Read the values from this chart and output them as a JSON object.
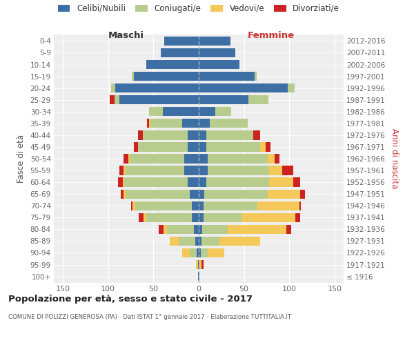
{
  "age_groups": [
    "100+",
    "95-99",
    "90-94",
    "85-89",
    "80-84",
    "75-79",
    "70-74",
    "65-69",
    "60-64",
    "55-59",
    "50-54",
    "45-49",
    "40-44",
    "35-39",
    "30-34",
    "25-29",
    "20-24",
    "15-19",
    "10-14",
    "5-9",
    "0-4"
  ],
  "birth_years": [
    "≤ 1916",
    "1917-1921",
    "1922-1926",
    "1927-1931",
    "1932-1936",
    "1937-1941",
    "1942-1946",
    "1947-1951",
    "1952-1956",
    "1957-1961",
    "1962-1966",
    "1967-1971",
    "1972-1976",
    "1977-1981",
    "1982-1986",
    "1987-1991",
    "1992-1996",
    "1997-2001",
    "2002-2006",
    "2007-2011",
    "2012-2016"
  ],
  "male_celibi": [
    1,
    1,
    2,
    4,
    5,
    8,
    8,
    10,
    12,
    16,
    16,
    12,
    12,
    18,
    40,
    88,
    92,
    72,
    58,
    42,
    38
  ],
  "male_coniugati": [
    0,
    0,
    8,
    18,
    30,
    50,
    62,
    70,
    70,
    65,
    60,
    55,
    50,
    35,
    15,
    5,
    5,
    2,
    0,
    0,
    0
  ],
  "male_vedovi": [
    0,
    2,
    8,
    10,
    4,
    3,
    3,
    3,
    2,
    2,
    2,
    0,
    0,
    2,
    0,
    0,
    0,
    0,
    0,
    0,
    0
  ],
  "male_divorziati": [
    0,
    0,
    0,
    0,
    5,
    5,
    2,
    3,
    5,
    5,
    5,
    5,
    5,
    2,
    0,
    5,
    0,
    0,
    0,
    0,
    0
  ],
  "female_nubili": [
    1,
    1,
    2,
    3,
    4,
    5,
    5,
    6,
    8,
    10,
    10,
    8,
    8,
    12,
    18,
    55,
    98,
    62,
    45,
    40,
    35
  ],
  "female_coniugate": [
    0,
    0,
    8,
    20,
    28,
    42,
    60,
    70,
    70,
    68,
    66,
    60,
    52,
    42,
    18,
    22,
    8,
    2,
    0,
    0,
    0
  ],
  "female_vedove": [
    0,
    2,
    18,
    45,
    65,
    60,
    46,
    36,
    26,
    14,
    8,
    6,
    0,
    0,
    0,
    0,
    0,
    0,
    0,
    0,
    0
  ],
  "female_divorziate": [
    0,
    2,
    0,
    0,
    5,
    5,
    2,
    5,
    8,
    12,
    5,
    5,
    8,
    0,
    0,
    0,
    0,
    0,
    0,
    0,
    0
  ],
  "colors": {
    "celibi": "#3d6fa5",
    "coniugati": "#b8cc8e",
    "vedovi": "#f5c85a",
    "divorziati": "#cc2222"
  },
  "title": "Popolazione per età, sesso e stato civile - 2017",
  "subtitle": "COMUNE DI POLIZZI GENEROSA (PA) - Dati ISTAT 1° gennaio 2017 - Elaborazione TUTTITALIA.IT",
  "legend_labels": [
    "Celibi/Nubili",
    "Coniugati/e",
    "Vedovi/e",
    "Divorziati/e"
  ],
  "xlim": 160
}
